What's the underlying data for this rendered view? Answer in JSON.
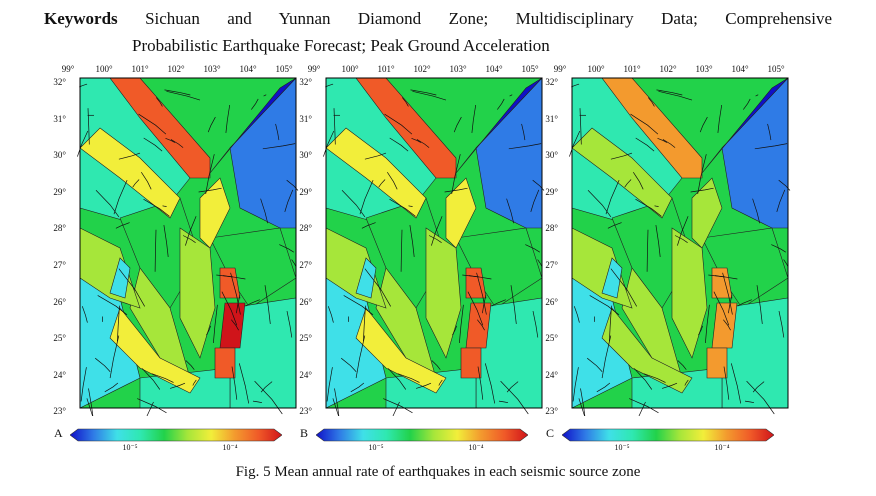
{
  "keywords": {
    "label": "Keywords",
    "line1": "Sichuan and Yunnan Diamond Zone; Multidisciplinary Data; Comprehensive",
    "line2": "Probabilistic Earthquake Forecast; Peak Ground Acceleration"
  },
  "map": {
    "lon_labels": [
      "99°",
      "100°",
      "101°",
      "102°",
      "103°",
      "104°",
      "105°"
    ],
    "lat_labels": [
      "32°",
      "31°",
      "30°",
      "29°",
      "28°",
      "27°",
      "26°",
      "25°",
      "24°",
      "23°"
    ]
  },
  "panels": [
    {
      "letter": "A",
      "tick_left": "10⁻⁵",
      "tick_right": "10⁻⁴"
    },
    {
      "letter": "B",
      "tick_left": "10⁻⁵",
      "tick_right": "10⁻⁴"
    },
    {
      "letter": "C",
      "tick_left": "10⁻⁵",
      "tick_right": "10⁻⁴"
    }
  ],
  "colors": {
    "deep_blue": "#1010c8",
    "blue": "#2f7be6",
    "cyan": "#3fe0e8",
    "teal": "#2fe8b0",
    "green": "#22d24a",
    "lime": "#a6e63a",
    "yellow": "#f2ee3a",
    "orange": "#f39a2e",
    "red_orange": "#f05a28",
    "red": "#d0141a"
  },
  "caption": "Fig. 5 Mean annual rate of earthquakes in each seismic source zone"
}
